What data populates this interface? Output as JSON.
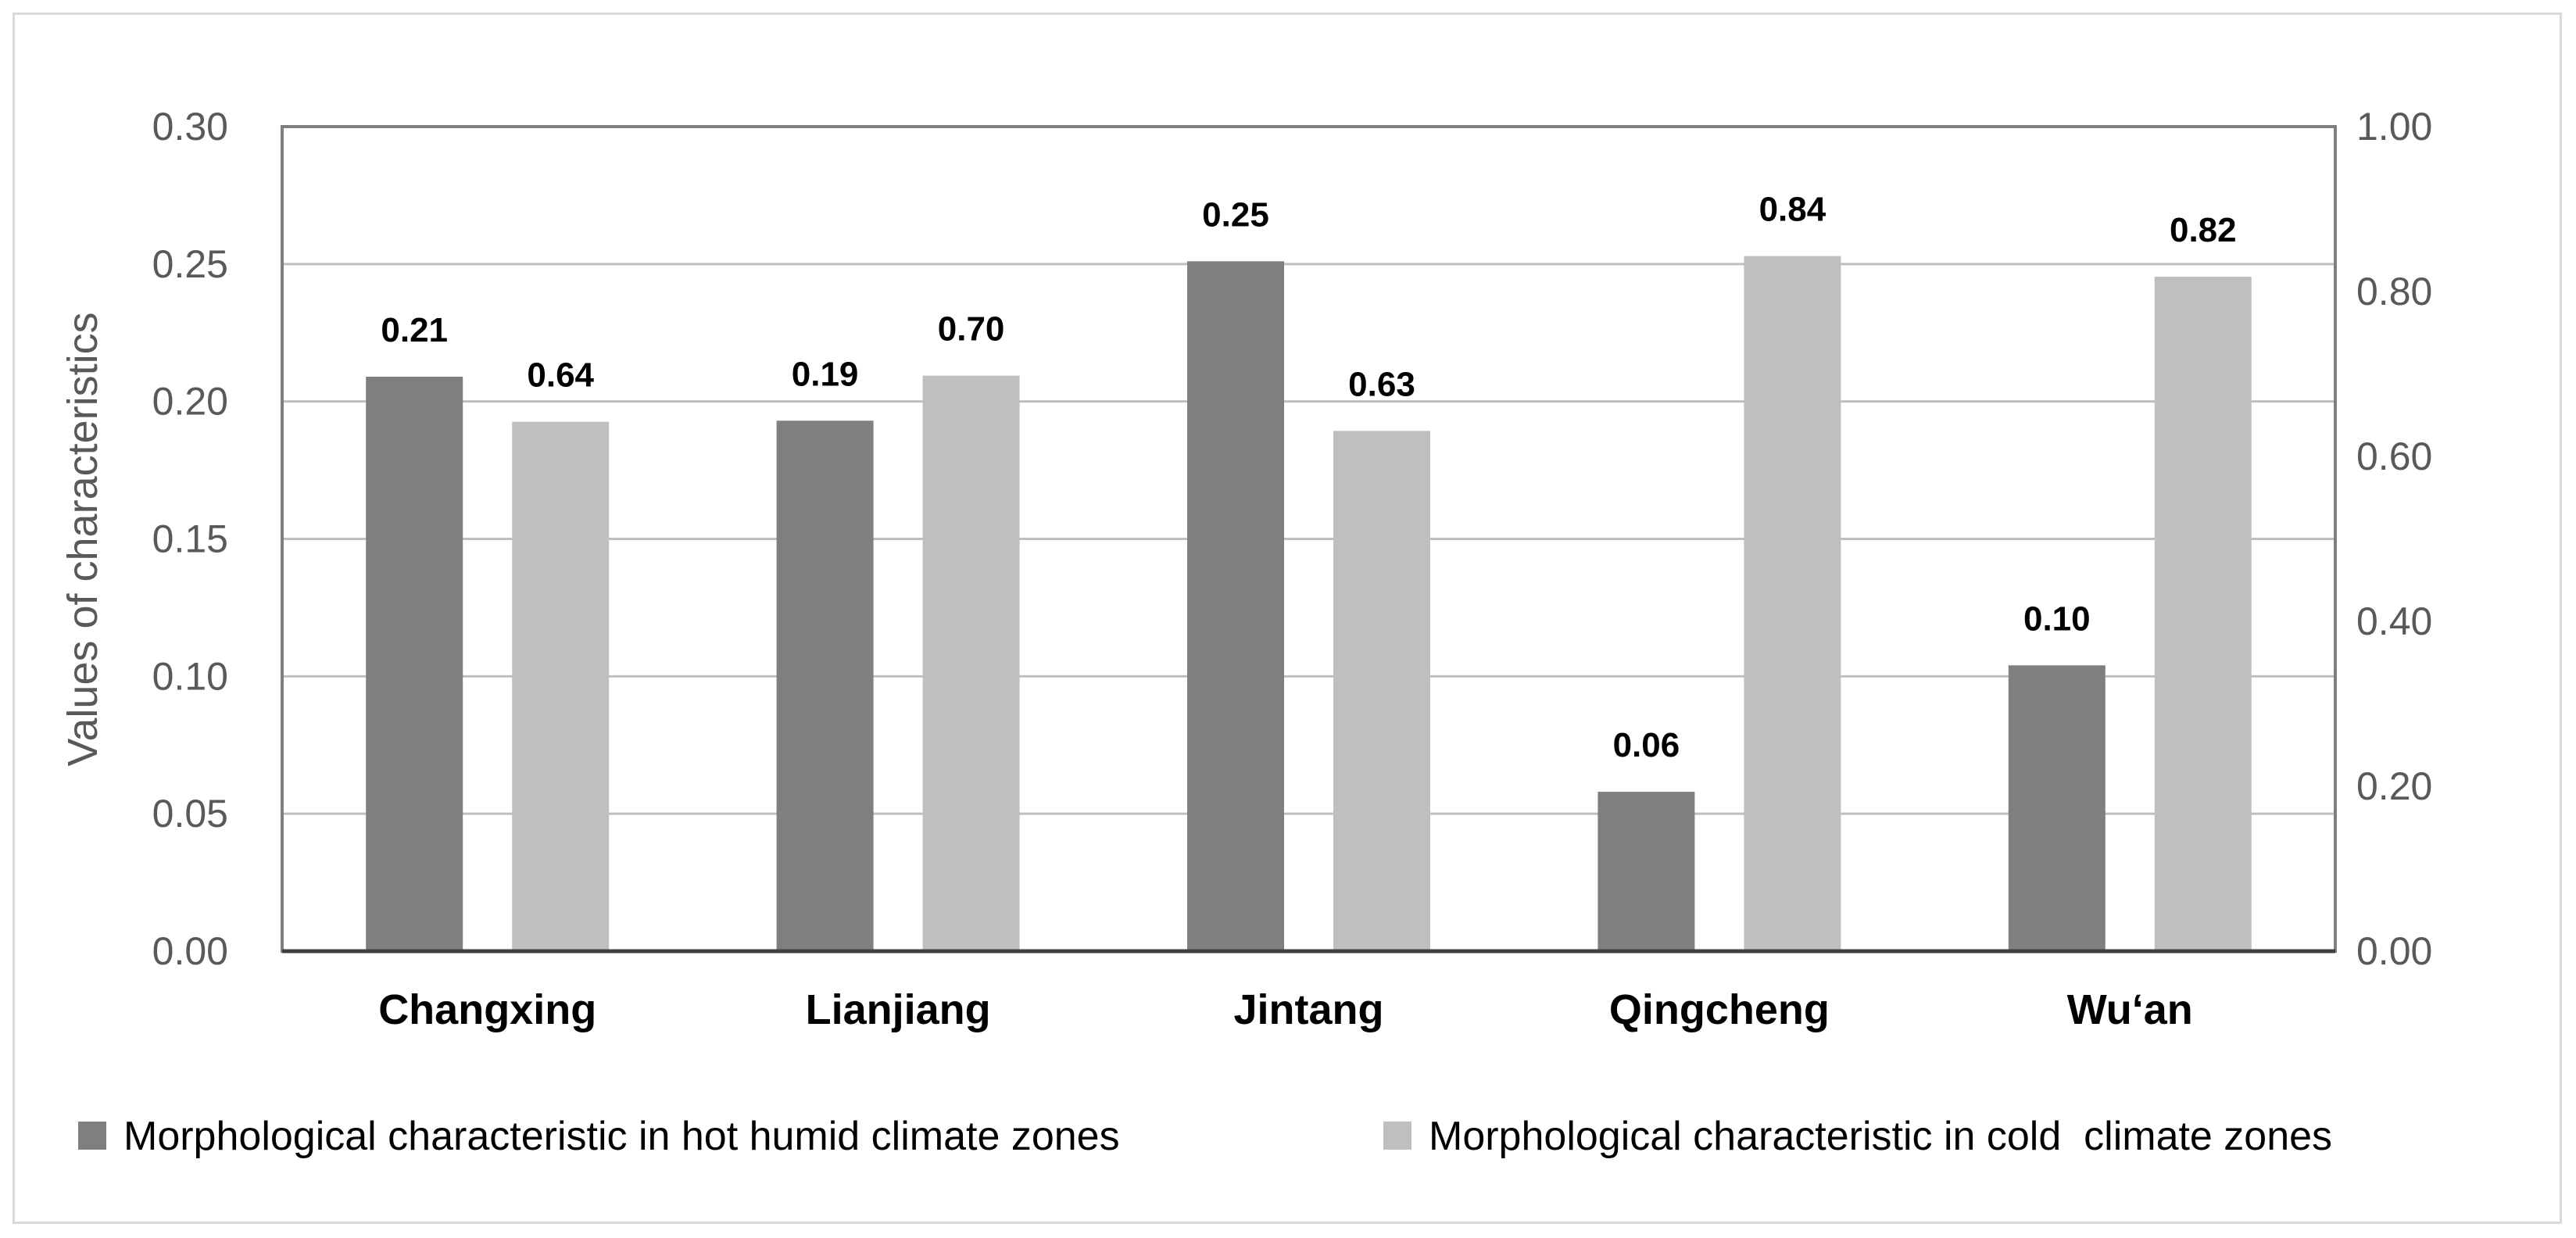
{
  "chart_data": {
    "type": "bar",
    "ylabel": "Values of characteristics",
    "categories": [
      "Changxing",
      "Lianjiang",
      "Jintang",
      "Qingcheng",
      "Wu‘an"
    ],
    "series": [
      {
        "name": "Morphological characteristic in hot humid climate zones",
        "axis": "left",
        "color": "#7f7f7f",
        "values": [
          0.21,
          0.19,
          0.25,
          0.06,
          0.1
        ],
        "plot_values": [
          0.209,
          0.193,
          0.251,
          0.058,
          0.104
        ]
      },
      {
        "name": "Morphological characteristic in cold  climate zones",
        "axis": "right",
        "color": "#bfbfbf",
        "values": [
          0.64,
          0.7,
          0.63,
          0.84,
          0.82
        ],
        "plot_values": [
          0.642,
          0.698,
          0.631,
          0.843,
          0.818
        ]
      }
    ],
    "y_left": {
      "range": [
        0,
        0.3
      ],
      "ticks": [
        "0.00",
        "0.05",
        "0.10",
        "0.15",
        "0.20",
        "0.25",
        "0.30"
      ]
    },
    "y_right": {
      "range": [
        0,
        1.0
      ],
      "ticks": [
        "0.00",
        "0.20",
        "0.40",
        "0.60",
        "0.80",
        "1.00"
      ]
    },
    "grid": true,
    "legend_position": "bottom"
  }
}
